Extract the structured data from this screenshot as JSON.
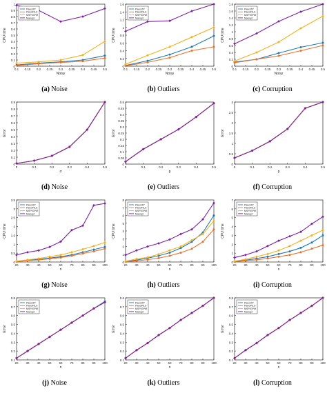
{
  "colors": {
    "s1": "#1f78b4",
    "s2": "#e8702a",
    "s3": "#f2b01e",
    "s4": "#7a1fa2"
  },
  "legend_names": [
    "PanoOP",
    "PanoIRLS",
    "MSP/GPM",
    "Manopt"
  ],
  "legend_names_h": [
    "PanoOP",
    "PanoIRLS",
    "MSP/GPM",
    "Manopt"
  ],
  "legend_names_c": [
    "PanoOP",
    "PanoIRLS",
    "MSP/GPM",
    "Manopt"
  ],
  "chart_data": [
    {
      "id": "a",
      "caption_letter": "(a)",
      "caption_word": "Noise",
      "type": "line",
      "xlabel": "Noisy",
      "ylabel": "CPU time",
      "xlim": [
        0.1,
        0.5
      ],
      "ylim": [
        0,
        1
      ],
      "xticks": [
        "0.1",
        "0.15",
        "0.2",
        "0.25",
        "0.3",
        "0.35",
        "0.4",
        "0.45",
        "0.5"
      ],
      "yticks": [
        "0",
        "0.1",
        "0.2",
        "0.3",
        "0.4",
        "0.5",
        "0.6",
        "0.7",
        "0.8",
        "0.9",
        "1"
      ],
      "x": [
        0.1,
        0.2,
        0.3,
        0.4,
        0.5
      ],
      "legend": true,
      "legend_pos": "top-left",
      "series": [
        {
          "name": "PanoOP",
          "values": [
            0.02,
            0.05,
            0.07,
            0.1,
            0.17
          ]
        },
        {
          "name": "PanoIRLS",
          "values": [
            0.01,
            0.04,
            0.06,
            0.08,
            0.13
          ]
        },
        {
          "name": "MSP/GPM",
          "values": [
            0.05,
            0.07,
            0.1,
            0.18,
            0.4
          ]
        },
        {
          "name": "Manopt",
          "values": [
            0.98,
            0.9,
            0.72,
            0.8,
            0.93
          ]
        }
      ]
    },
    {
      "id": "b",
      "caption_letter": "(b)",
      "caption_word": "Outliers",
      "type": "line",
      "xlabel": "Noisy",
      "ylabel": "CPU time",
      "xlim": [
        0.1,
        0.5
      ],
      "ylim": [
        0,
        1.6
      ],
      "xticks": [
        "0.1",
        "0.15",
        "0.2",
        "0.25",
        "0.3",
        "0.35",
        "0.4",
        "0.45",
        "0.5"
      ],
      "yticks": [
        "0",
        "0.2",
        "0.4",
        "0.6",
        "0.8",
        "1",
        "1.2",
        "1.4",
        "1.6"
      ],
      "x": [
        0.1,
        0.2,
        0.3,
        0.4,
        0.5
      ],
      "legend": true,
      "legend_pos": "top-left",
      "series": [
        {
          "name": "PanoOP",
          "values": [
            0.02,
            0.14,
            0.3,
            0.5,
            0.78
          ]
        },
        {
          "name": "PanoIRLS",
          "values": [
            0.01,
            0.1,
            0.22,
            0.4,
            0.5
          ]
        },
        {
          "name": "MSP/GPM",
          "values": [
            0.05,
            0.28,
            0.5,
            0.75,
            1.0
          ]
        },
        {
          "name": "Manopt",
          "values": [
            0.9,
            1.15,
            1.17,
            1.42,
            1.6
          ]
        }
      ]
    },
    {
      "id": "c",
      "caption_letter": "(c)",
      "caption_word": "Corruption",
      "type": "line",
      "xlabel": "Noisy",
      "ylabel": "CPU time",
      "xlim": [
        0.1,
        0.5
      ],
      "ylim": [
        0,
        1.8
      ],
      "xticks": [
        "0.1",
        "0.15",
        "0.2",
        "0.25",
        "0.3",
        "0.35",
        "0.4",
        "0.45",
        "0.5"
      ],
      "yticks": [
        "0",
        "0.2",
        "0.4",
        "0.6",
        "0.8",
        "1",
        "1.2",
        "1.4",
        "1.6",
        "1.8"
      ],
      "x": [
        0.1,
        0.2,
        0.3,
        0.4,
        0.5
      ],
      "legend": true,
      "legend_pos": "top-left",
      "series": [
        {
          "name": "PanoOP",
          "values": [
            0.12,
            0.2,
            0.38,
            0.55,
            0.68
          ]
        },
        {
          "name": "PanoIRLS",
          "values": [
            0.1,
            0.2,
            0.3,
            0.45,
            0.6
          ]
        },
        {
          "name": "MSP/GPM",
          "values": [
            0.15,
            0.4,
            0.7,
            1.1,
            1.45
          ]
        },
        {
          "name": "Manopt",
          "values": [
            0.65,
            0.95,
            1.3,
            1.58,
            1.8
          ]
        }
      ]
    },
    {
      "id": "d",
      "caption_letter": "(d)",
      "caption_word": "Noise",
      "type": "line",
      "xlabel": "σ",
      "ylabel": "Error",
      "xlim": [
        0,
        0.5
      ],
      "ylim": [
        0,
        0.9
      ],
      "xticks": [
        "0",
        "0.1",
        "0.2",
        "0.3",
        "0.4",
        "0.5"
      ],
      "yticks": [
        "0",
        "0.1",
        "0.2",
        "0.3",
        "0.4",
        "0.5",
        "0.6",
        "0.7",
        "0.8",
        "0.9"
      ],
      "x": [
        0,
        0.1,
        0.2,
        0.3,
        0.4,
        0.5
      ],
      "legend": false,
      "series": [
        {
          "name": "PanoOP",
          "values": [
            0.01,
            0.05,
            0.12,
            0.25,
            0.5,
            0.9
          ]
        },
        {
          "name": "PanoIRLS",
          "values": [
            0.01,
            0.05,
            0.12,
            0.25,
            0.5,
            0.9
          ]
        },
        {
          "name": "MSP/GPM",
          "values": [
            0.01,
            0.05,
            0.12,
            0.25,
            0.5,
            0.9
          ]
        },
        {
          "name": "Manopt",
          "values": [
            0.01,
            0.05,
            0.12,
            0.25,
            0.5,
            0.9
          ]
        }
      ]
    },
    {
      "id": "e",
      "caption_letter": "(e)",
      "caption_word": "Outliers",
      "type": "line",
      "xlabel": "p",
      "ylabel": "Error",
      "xlim": [
        0,
        0.5
      ],
      "ylim": [
        0,
        0.5
      ],
      "xticks": [
        "0",
        "0.1",
        "0.2",
        "0.3",
        "0.4",
        "0.5"
      ],
      "yticks": [
        "0",
        "0.05",
        "0.1",
        "0.15",
        "0.2",
        "0.25",
        "0.3",
        "0.35",
        "0.4",
        "0.45",
        "0.5"
      ],
      "x": [
        0,
        0.1,
        0.2,
        0.3,
        0.4,
        0.5
      ],
      "legend": false,
      "series": [
        {
          "name": "PanoOP",
          "values": [
            0.02,
            0.12,
            0.2,
            0.28,
            0.38,
            0.49
          ]
        },
        {
          "name": "PanoIRLS",
          "values": [
            0.02,
            0.12,
            0.2,
            0.28,
            0.38,
            0.49
          ]
        },
        {
          "name": "MSP/GPM",
          "values": [
            0.02,
            0.12,
            0.2,
            0.28,
            0.38,
            0.49
          ]
        },
        {
          "name": "Manopt",
          "values": [
            0.02,
            0.12,
            0.2,
            0.28,
            0.38,
            0.49
          ]
        }
      ]
    },
    {
      "id": "f",
      "caption_letter": "(f)",
      "caption_word": "Corruption",
      "type": "line",
      "xlabel": "p",
      "ylabel": "Error",
      "xlim": [
        0,
        0.5
      ],
      "ylim": [
        0,
        3
      ],
      "xticks": [
        "0",
        "0.1",
        "0.2",
        "0.3",
        "0.4",
        "0.5"
      ],
      "yticks": [
        "0",
        "0.5",
        "1",
        "1.5",
        "2",
        "2.5",
        "3"
      ],
      "x": [
        0,
        0.1,
        0.2,
        0.3,
        0.4,
        0.5
      ],
      "legend": false,
      "series": [
        {
          "name": "PanoOP",
          "values": [
            0.3,
            0.65,
            1.1,
            1.7,
            2.7,
            3.0
          ]
        },
        {
          "name": "PanoIRLS",
          "values": [
            0.3,
            0.65,
            1.1,
            1.7,
            2.7,
            3.0
          ]
        },
        {
          "name": "MSP/GPM",
          "values": [
            0.3,
            0.65,
            1.1,
            1.7,
            2.7,
            3.0
          ]
        },
        {
          "name": "Manopt",
          "values": [
            0.3,
            0.65,
            1.1,
            1.7,
            2.7,
            3.0
          ]
        }
      ]
    },
    {
      "id": "g",
      "caption_letter": "(g)",
      "caption_word": "Noise",
      "type": "line",
      "xlabel": "n",
      "ylabel": "CPU time",
      "xlim": [
        20,
        100
      ],
      "ylim": [
        0,
        3.5
      ],
      "xticks": [
        "20",
        "30",
        "40",
        "50",
        "60",
        "70",
        "80",
        "90",
        "100"
      ],
      "yticks": [
        "0",
        "0.5",
        "1",
        "1.5",
        "2",
        "2.5",
        "3",
        "3.5"
      ],
      "x": [
        20,
        30,
        40,
        50,
        60,
        70,
        80,
        90,
        100
      ],
      "legend": true,
      "legend_pos": "top-left",
      "series": [
        {
          "name": "PanoOP",
          "values": [
            0.03,
            0.1,
            0.15,
            0.22,
            0.3,
            0.4,
            0.55,
            0.7,
            0.85
          ]
        },
        {
          "name": "PanoIRLS",
          "values": [
            0.02,
            0.08,
            0.12,
            0.18,
            0.25,
            0.35,
            0.48,
            0.6,
            0.75
          ]
        },
        {
          "name": "MSP/GPM",
          "values": [
            0.05,
            0.12,
            0.2,
            0.3,
            0.4,
            0.55,
            0.72,
            0.9,
            1.1
          ]
        },
        {
          "name": "Manopt",
          "values": [
            0.4,
            0.55,
            0.65,
            0.85,
            1.15,
            1.8,
            2.05,
            3.2,
            3.3
          ]
        }
      ]
    },
    {
      "id": "h",
      "caption_letter": "(h)",
      "caption_word": "Outliers",
      "type": "line",
      "xlabel": "n",
      "ylabel": "CPU time",
      "xlim": [
        20,
        100
      ],
      "ylim": [
        0,
        8
      ],
      "xticks": [
        "20",
        "30",
        "40",
        "50",
        "60",
        "70",
        "80",
        "90",
        "100"
      ],
      "yticks": [
        "0",
        "1",
        "2",
        "3",
        "4",
        "5",
        "6",
        "7",
        "8"
      ],
      "x": [
        20,
        30,
        40,
        50,
        60,
        70,
        80,
        90,
        100
      ],
      "legend": true,
      "legend_pos": "top-left",
      "series": [
        {
          "name": "PanoOP",
          "values": [
            0.05,
            0.25,
            0.5,
            0.8,
            1.2,
            1.8,
            2.6,
            3.8,
            6.0
          ]
        },
        {
          "name": "PanoIRLS",
          "values": [
            0.03,
            0.15,
            0.3,
            0.5,
            0.8,
            1.2,
            1.7,
            2.6,
            4.2
          ]
        },
        {
          "name": "MSP/GPM",
          "values": [
            0.1,
            0.4,
            0.6,
            1.0,
            1.5,
            2.0,
            2.8,
            3.6,
            5.3
          ]
        },
        {
          "name": "Manopt",
          "values": [
            0.9,
            1.5,
            2.0,
            2.4,
            2.9,
            3.6,
            4.2,
            5.5,
            7.6
          ]
        }
      ]
    },
    {
      "id": "i",
      "caption_letter": "(i)",
      "caption_word": "Corruption",
      "type": "line",
      "xlabel": "n",
      "ylabel": "CPU time",
      "xlim": [
        20,
        100
      ],
      "ylim": [
        0,
        7
      ],
      "xticks": [
        "20",
        "30",
        "40",
        "50",
        "60",
        "70",
        "80",
        "90",
        "100"
      ],
      "yticks": [
        "0",
        "1",
        "2",
        "3",
        "4",
        "5",
        "6",
        "7"
      ],
      "x": [
        20,
        30,
        40,
        50,
        60,
        70,
        80,
        90,
        100
      ],
      "legend": true,
      "legend_pos": "top-left",
      "series": [
        {
          "name": "PanoOP",
          "values": [
            0.05,
            0.2,
            0.4,
            0.6,
            0.9,
            1.2,
            1.6,
            2.2,
            3.0
          ]
        },
        {
          "name": "PanoIRLS",
          "values": [
            0.03,
            0.15,
            0.25,
            0.4,
            0.6,
            0.8,
            1.1,
            1.5,
            1.9
          ]
        },
        {
          "name": "MSP/GPM",
          "values": [
            0.1,
            0.3,
            0.6,
            0.9,
            1.3,
            1.8,
            2.4,
            3.0,
            3.6
          ]
        },
        {
          "name": "Manopt",
          "values": [
            0.5,
            0.8,
            1.2,
            1.8,
            2.4,
            2.9,
            3.4,
            4.3,
            5.1
          ]
        }
      ]
    },
    {
      "id": "j",
      "caption_letter": "(j)",
      "caption_word": "Noise",
      "type": "line",
      "xlabel": "n",
      "ylabel": "Error",
      "xlim": [
        20,
        100
      ],
      "ylim": [
        0.1,
        0.8
      ],
      "xticks": [
        "20",
        "30",
        "40",
        "50",
        "60",
        "70",
        "80",
        "90",
        "100"
      ],
      "yticks": [
        "0.1",
        "0.2",
        "0.3",
        "0.4",
        "0.5",
        "0.6",
        "0.7",
        "0.8"
      ],
      "x": [
        20,
        30,
        40,
        50,
        60,
        70,
        80,
        90,
        100
      ],
      "legend": true,
      "legend_pos": "top-left",
      "series": [
        {
          "name": "PanoOP",
          "values": [
            0.12,
            0.2,
            0.28,
            0.36,
            0.44,
            0.52,
            0.6,
            0.68,
            0.76
          ]
        },
        {
          "name": "PanoIRLS",
          "values": [
            0.12,
            0.2,
            0.28,
            0.36,
            0.44,
            0.52,
            0.6,
            0.68,
            0.75
          ]
        },
        {
          "name": "MSP/GPM",
          "values": [
            0.12,
            0.2,
            0.28,
            0.36,
            0.44,
            0.52,
            0.6,
            0.68,
            0.75
          ]
        },
        {
          "name": "Manopt",
          "values": [
            0.12,
            0.2,
            0.28,
            0.36,
            0.44,
            0.52,
            0.6,
            0.68,
            0.75
          ]
        }
      ]
    },
    {
      "id": "k",
      "caption_letter": "(k)",
      "caption_word": "Outliers",
      "type": "line",
      "xlabel": "n",
      "ylabel": "Error",
      "xlim": [
        20,
        100
      ],
      "ylim": [
        0.1,
        0.8
      ],
      "xticks": [
        "20",
        "30",
        "40",
        "50",
        "60",
        "70",
        "80",
        "90",
        "100"
      ],
      "yticks": [
        "0.1",
        "0.2",
        "0.3",
        "0.4",
        "0.5",
        "0.6",
        "0.7",
        "0.8"
      ],
      "x": [
        20,
        30,
        40,
        50,
        60,
        70,
        80,
        90,
        100
      ],
      "legend": true,
      "legend_pos": "top-left",
      "series": [
        {
          "name": "PanoOP",
          "values": [
            0.12,
            0.21,
            0.29,
            0.38,
            0.46,
            0.55,
            0.63,
            0.71,
            0.8
          ]
        },
        {
          "name": "PanoIRLS",
          "values": [
            0.12,
            0.21,
            0.29,
            0.38,
            0.46,
            0.55,
            0.63,
            0.71,
            0.8
          ]
        },
        {
          "name": "MSP/GPM",
          "values": [
            0.12,
            0.21,
            0.29,
            0.38,
            0.46,
            0.55,
            0.63,
            0.71,
            0.8
          ]
        },
        {
          "name": "Manopt",
          "values": [
            0.12,
            0.21,
            0.29,
            0.38,
            0.46,
            0.55,
            0.63,
            0.71,
            0.8
          ]
        }
      ]
    },
    {
      "id": "l",
      "caption_letter": "(l)",
      "caption_word": "Corruption",
      "type": "line",
      "xlabel": "n",
      "ylabel": "Error",
      "xlim": [
        20,
        100
      ],
      "ylim": [
        0.1,
        0.8
      ],
      "xticks": [
        "20",
        "30",
        "40",
        "50",
        "60",
        "70",
        "80",
        "90",
        "100"
      ],
      "yticks": [
        "0.1",
        "0.2",
        "0.3",
        "0.4",
        "0.5",
        "0.6",
        "0.7",
        "0.8"
      ],
      "x": [
        20,
        30,
        40,
        50,
        60,
        70,
        80,
        90,
        100
      ],
      "legend": true,
      "legend_pos": "top-left",
      "series": [
        {
          "name": "PanoOP",
          "values": [
            0.12,
            0.21,
            0.29,
            0.38,
            0.46,
            0.55,
            0.63,
            0.71,
            0.8
          ]
        },
        {
          "name": "PanoIRLS",
          "values": [
            0.12,
            0.21,
            0.29,
            0.38,
            0.46,
            0.55,
            0.63,
            0.71,
            0.8
          ]
        },
        {
          "name": "MSP/GPM",
          "values": [
            0.12,
            0.21,
            0.29,
            0.38,
            0.46,
            0.55,
            0.63,
            0.71,
            0.8
          ]
        },
        {
          "name": "Manopt",
          "values": [
            0.12,
            0.21,
            0.29,
            0.38,
            0.46,
            0.55,
            0.63,
            0.71,
            0.8
          ]
        }
      ]
    }
  ]
}
